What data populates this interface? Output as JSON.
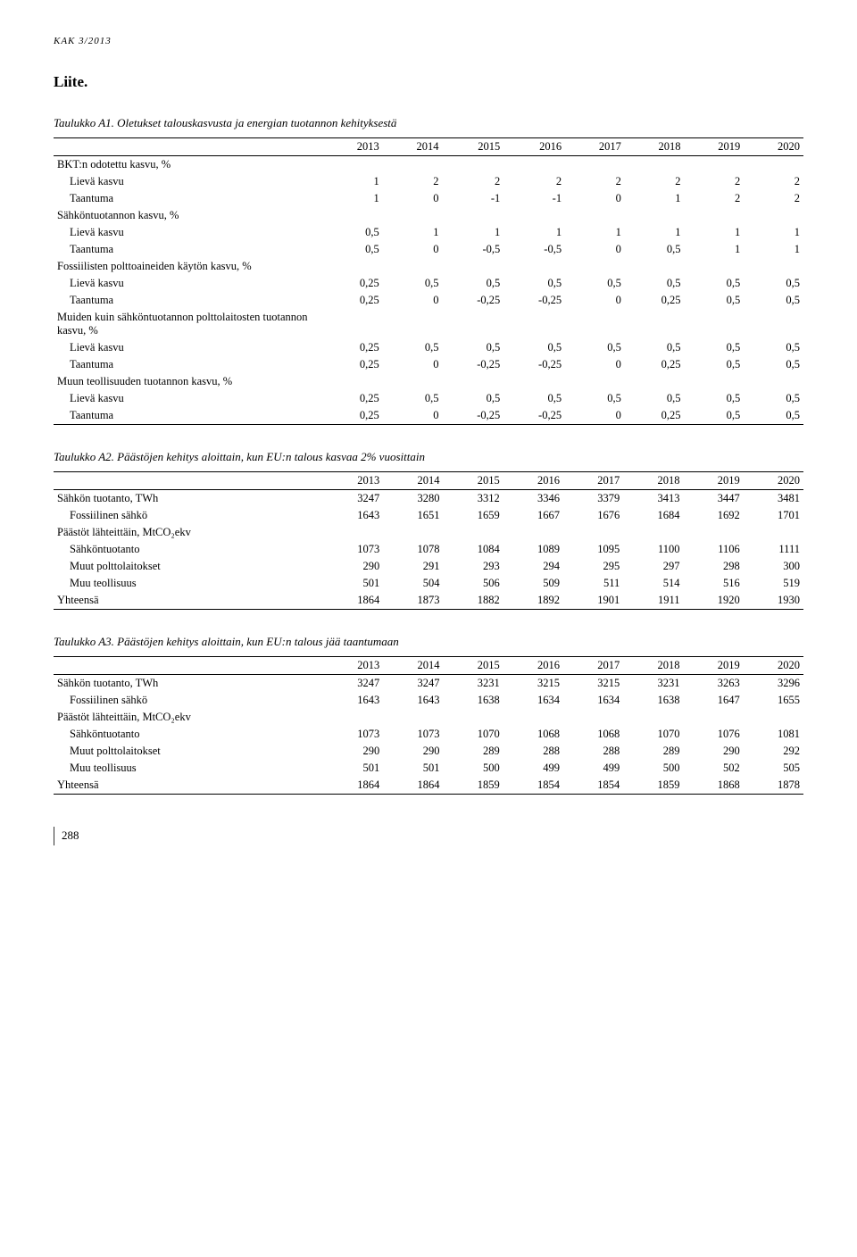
{
  "header": "KAK 3/2013",
  "liite": "Liite.",
  "tableA1": {
    "caption": "Taulukko A1. Oletukset talouskasvusta ja energian tuotannon kehityksestä",
    "years": [
      "2013",
      "2014",
      "2015",
      "2016",
      "2017",
      "2018",
      "2019",
      "2020"
    ],
    "rows": [
      {
        "label": "BKT:n odotettu kasvu, %",
        "indent": 0,
        "vals": [
          "",
          "",
          "",
          "",
          "",
          "",
          "",
          ""
        ]
      },
      {
        "label": "Lievä kasvu",
        "indent": 1,
        "vals": [
          "1",
          "2",
          "2",
          "2",
          "2",
          "2",
          "2",
          "2"
        ]
      },
      {
        "label": "Taantuma",
        "indent": 1,
        "vals": [
          "1",
          "0",
          "-1",
          "-1",
          "0",
          "1",
          "2",
          "2"
        ]
      },
      {
        "label": "Sähköntuotannon kasvu, %",
        "indent": 0,
        "vals": [
          "",
          "",
          "",
          "",
          "",
          "",
          "",
          ""
        ]
      },
      {
        "label": "Lievä kasvu",
        "indent": 1,
        "vals": [
          "0,5",
          "1",
          "1",
          "1",
          "1",
          "1",
          "1",
          "1"
        ]
      },
      {
        "label": "Taantuma",
        "indent": 1,
        "vals": [
          "0,5",
          "0",
          "-0,5",
          "-0,5",
          "0",
          "0,5",
          "1",
          "1"
        ]
      },
      {
        "label": "Fossiilisten polttoaineiden käytön kasvu, %",
        "indent": 0,
        "vals": [
          "",
          "",
          "",
          "",
          "",
          "",
          "",
          ""
        ]
      },
      {
        "label": "Lievä kasvu",
        "indent": 1,
        "vals": [
          "0,25",
          "0,5",
          "0,5",
          "0,5",
          "0,5",
          "0,5",
          "0,5",
          "0,5"
        ]
      },
      {
        "label": "Taantuma",
        "indent": 1,
        "vals": [
          "0,25",
          "0",
          "-0,25",
          "-0,25",
          "0",
          "0,25",
          "0,5",
          "0,5"
        ]
      },
      {
        "label": "Muiden kuin sähköntuotannon polttolaitosten tuotannon kasvu, %",
        "indent": 0,
        "vals": [
          "",
          "",
          "",
          "",
          "",
          "",
          "",
          ""
        ]
      },
      {
        "label": "Lievä kasvu",
        "indent": 1,
        "vals": [
          "0,25",
          "0,5",
          "0,5",
          "0,5",
          "0,5",
          "0,5",
          "0,5",
          "0,5"
        ]
      },
      {
        "label": "Taantuma",
        "indent": 1,
        "vals": [
          "0,25",
          "0",
          "-0,25",
          "-0,25",
          "0",
          "0,25",
          "0,5",
          "0,5"
        ]
      },
      {
        "label": "Muun teollisuuden tuotannon kasvu, %",
        "indent": 0,
        "vals": [
          "",
          "",
          "",
          "",
          "",
          "",
          "",
          ""
        ]
      },
      {
        "label": "Lievä kasvu",
        "indent": 1,
        "vals": [
          "0,25",
          "0,5",
          "0,5",
          "0,5",
          "0,5",
          "0,5",
          "0,5",
          "0,5"
        ]
      },
      {
        "label": "Taantuma",
        "indent": 1,
        "vals": [
          "0,25",
          "0",
          "-0,25",
          "-0,25",
          "0",
          "0,25",
          "0,5",
          "0,5"
        ]
      }
    ]
  },
  "tableA2": {
    "caption": "Taulukko A2. Päästöjen kehitys aloittain, kun EU:n talous kasvaa 2% vuosittain",
    "years": [
      "2013",
      "2014",
      "2015",
      "2016",
      "2017",
      "2018",
      "2019",
      "2020"
    ],
    "rows": [
      {
        "label": "Sähkön tuotanto, TWh",
        "indent": 0,
        "vals": [
          "3247",
          "3280",
          "3312",
          "3346",
          "3379",
          "3413",
          "3447",
          "3481"
        ]
      },
      {
        "label": "Fossiilinen sähkö",
        "indent": 1,
        "vals": [
          "1643",
          "1651",
          "1659",
          "1667",
          "1676",
          "1684",
          "1692",
          "1701"
        ]
      },
      {
        "label": "Päästöt lähteittäin, MtCO₂ekv",
        "indent": 0,
        "vals": [
          "",
          "",
          "",
          "",
          "",
          "",
          "",
          ""
        ]
      },
      {
        "label": "Sähköntuotanto",
        "indent": 1,
        "vals": [
          "1073",
          "1078",
          "1084",
          "1089",
          "1095",
          "1100",
          "1106",
          "1111"
        ]
      },
      {
        "label": "Muut polttolaitokset",
        "indent": 1,
        "vals": [
          "290",
          "291",
          "293",
          "294",
          "295",
          "297",
          "298",
          "300"
        ]
      },
      {
        "label": "Muu teollisuus",
        "indent": 1,
        "vals": [
          "501",
          "504",
          "506",
          "509",
          "511",
          "514",
          "516",
          "519"
        ]
      },
      {
        "label": "Yhteensä",
        "indent": 0,
        "vals": [
          "1864",
          "1873",
          "1882",
          "1892",
          "1901",
          "1911",
          "1920",
          "1930"
        ]
      }
    ]
  },
  "tableA3": {
    "caption": "Taulukko A3. Päästöjen kehitys aloittain, kun EU:n talous jää taantumaan",
    "years": [
      "2013",
      "2014",
      "2015",
      "2016",
      "2017",
      "2018",
      "2019",
      "2020"
    ],
    "rows": [
      {
        "label": "Sähkön tuotanto, TWh",
        "indent": 0,
        "vals": [
          "3247",
          "3247",
          "3231",
          "3215",
          "3215",
          "3231",
          "3263",
          "3296"
        ]
      },
      {
        "label": "Fossiilinen sähkö",
        "indent": 1,
        "vals": [
          "1643",
          "1643",
          "1638",
          "1634",
          "1634",
          "1638",
          "1647",
          "1655"
        ]
      },
      {
        "label": "Päästöt lähteittäin, MtCO₂ekv",
        "indent": 0,
        "vals": [
          "",
          "",
          "",
          "",
          "",
          "",
          "",
          ""
        ]
      },
      {
        "label": "Sähköntuotanto",
        "indent": 1,
        "vals": [
          "1073",
          "1073",
          "1070",
          "1068",
          "1068",
          "1070",
          "1076",
          "1081"
        ]
      },
      {
        "label": "Muut polttolaitokset",
        "indent": 1,
        "vals": [
          "290",
          "290",
          "289",
          "288",
          "288",
          "289",
          "290",
          "292"
        ]
      },
      {
        "label": "Muu teollisuus",
        "indent": 1,
        "vals": [
          "501",
          "501",
          "500",
          "499",
          "499",
          "500",
          "502",
          "505"
        ]
      },
      {
        "label": "Yhteensä",
        "indent": 0,
        "vals": [
          "1864",
          "1864",
          "1859",
          "1854",
          "1854",
          "1859",
          "1868",
          "1878"
        ]
      }
    ]
  },
  "pageNumber": "288"
}
